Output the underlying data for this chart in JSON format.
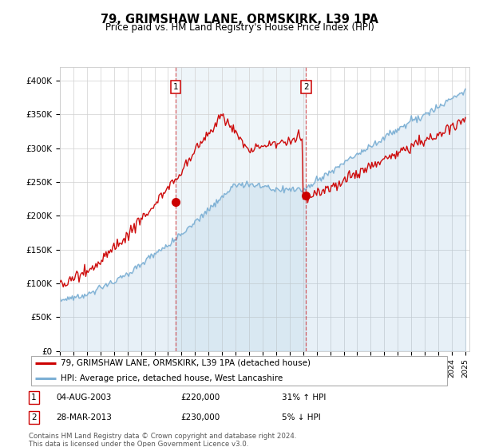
{
  "title": "79, GRIMSHAW LANE, ORMSKIRK, L39 1PA",
  "subtitle": "Price paid vs. HM Land Registry's House Price Index (HPI)",
  "legend_line1": "79, GRIMSHAW LANE, ORMSKIRK, L39 1PA (detached house)",
  "legend_line2": "HPI: Average price, detached house, West Lancashire",
  "transaction1_date": "04-AUG-2003",
  "transaction1_price": "£220,000",
  "transaction1_hpi": "31% ↑ HPI",
  "transaction2_date": "28-MAR-2013",
  "transaction2_price": "£230,000",
  "transaction2_hpi": "5% ↓ HPI",
  "footer": "Contains HM Land Registry data © Crown copyright and database right 2024.\nThis data is licensed under the Open Government Licence v3.0.",
  "house_color": "#cc0000",
  "hpi_color": "#7bafd4",
  "ylim": [
    0,
    420000
  ],
  "yticks": [
    0,
    50000,
    100000,
    150000,
    200000,
    250000,
    300000,
    350000,
    400000
  ],
  "ytick_labels": [
    "£0",
    "£50K",
    "£100K",
    "£150K",
    "£200K",
    "£250K",
    "£300K",
    "£350K",
    "£400K"
  ],
  "t1_year": 2003.58,
  "t1_price": 220000,
  "t2_year": 2013.21,
  "t2_price": 230000
}
